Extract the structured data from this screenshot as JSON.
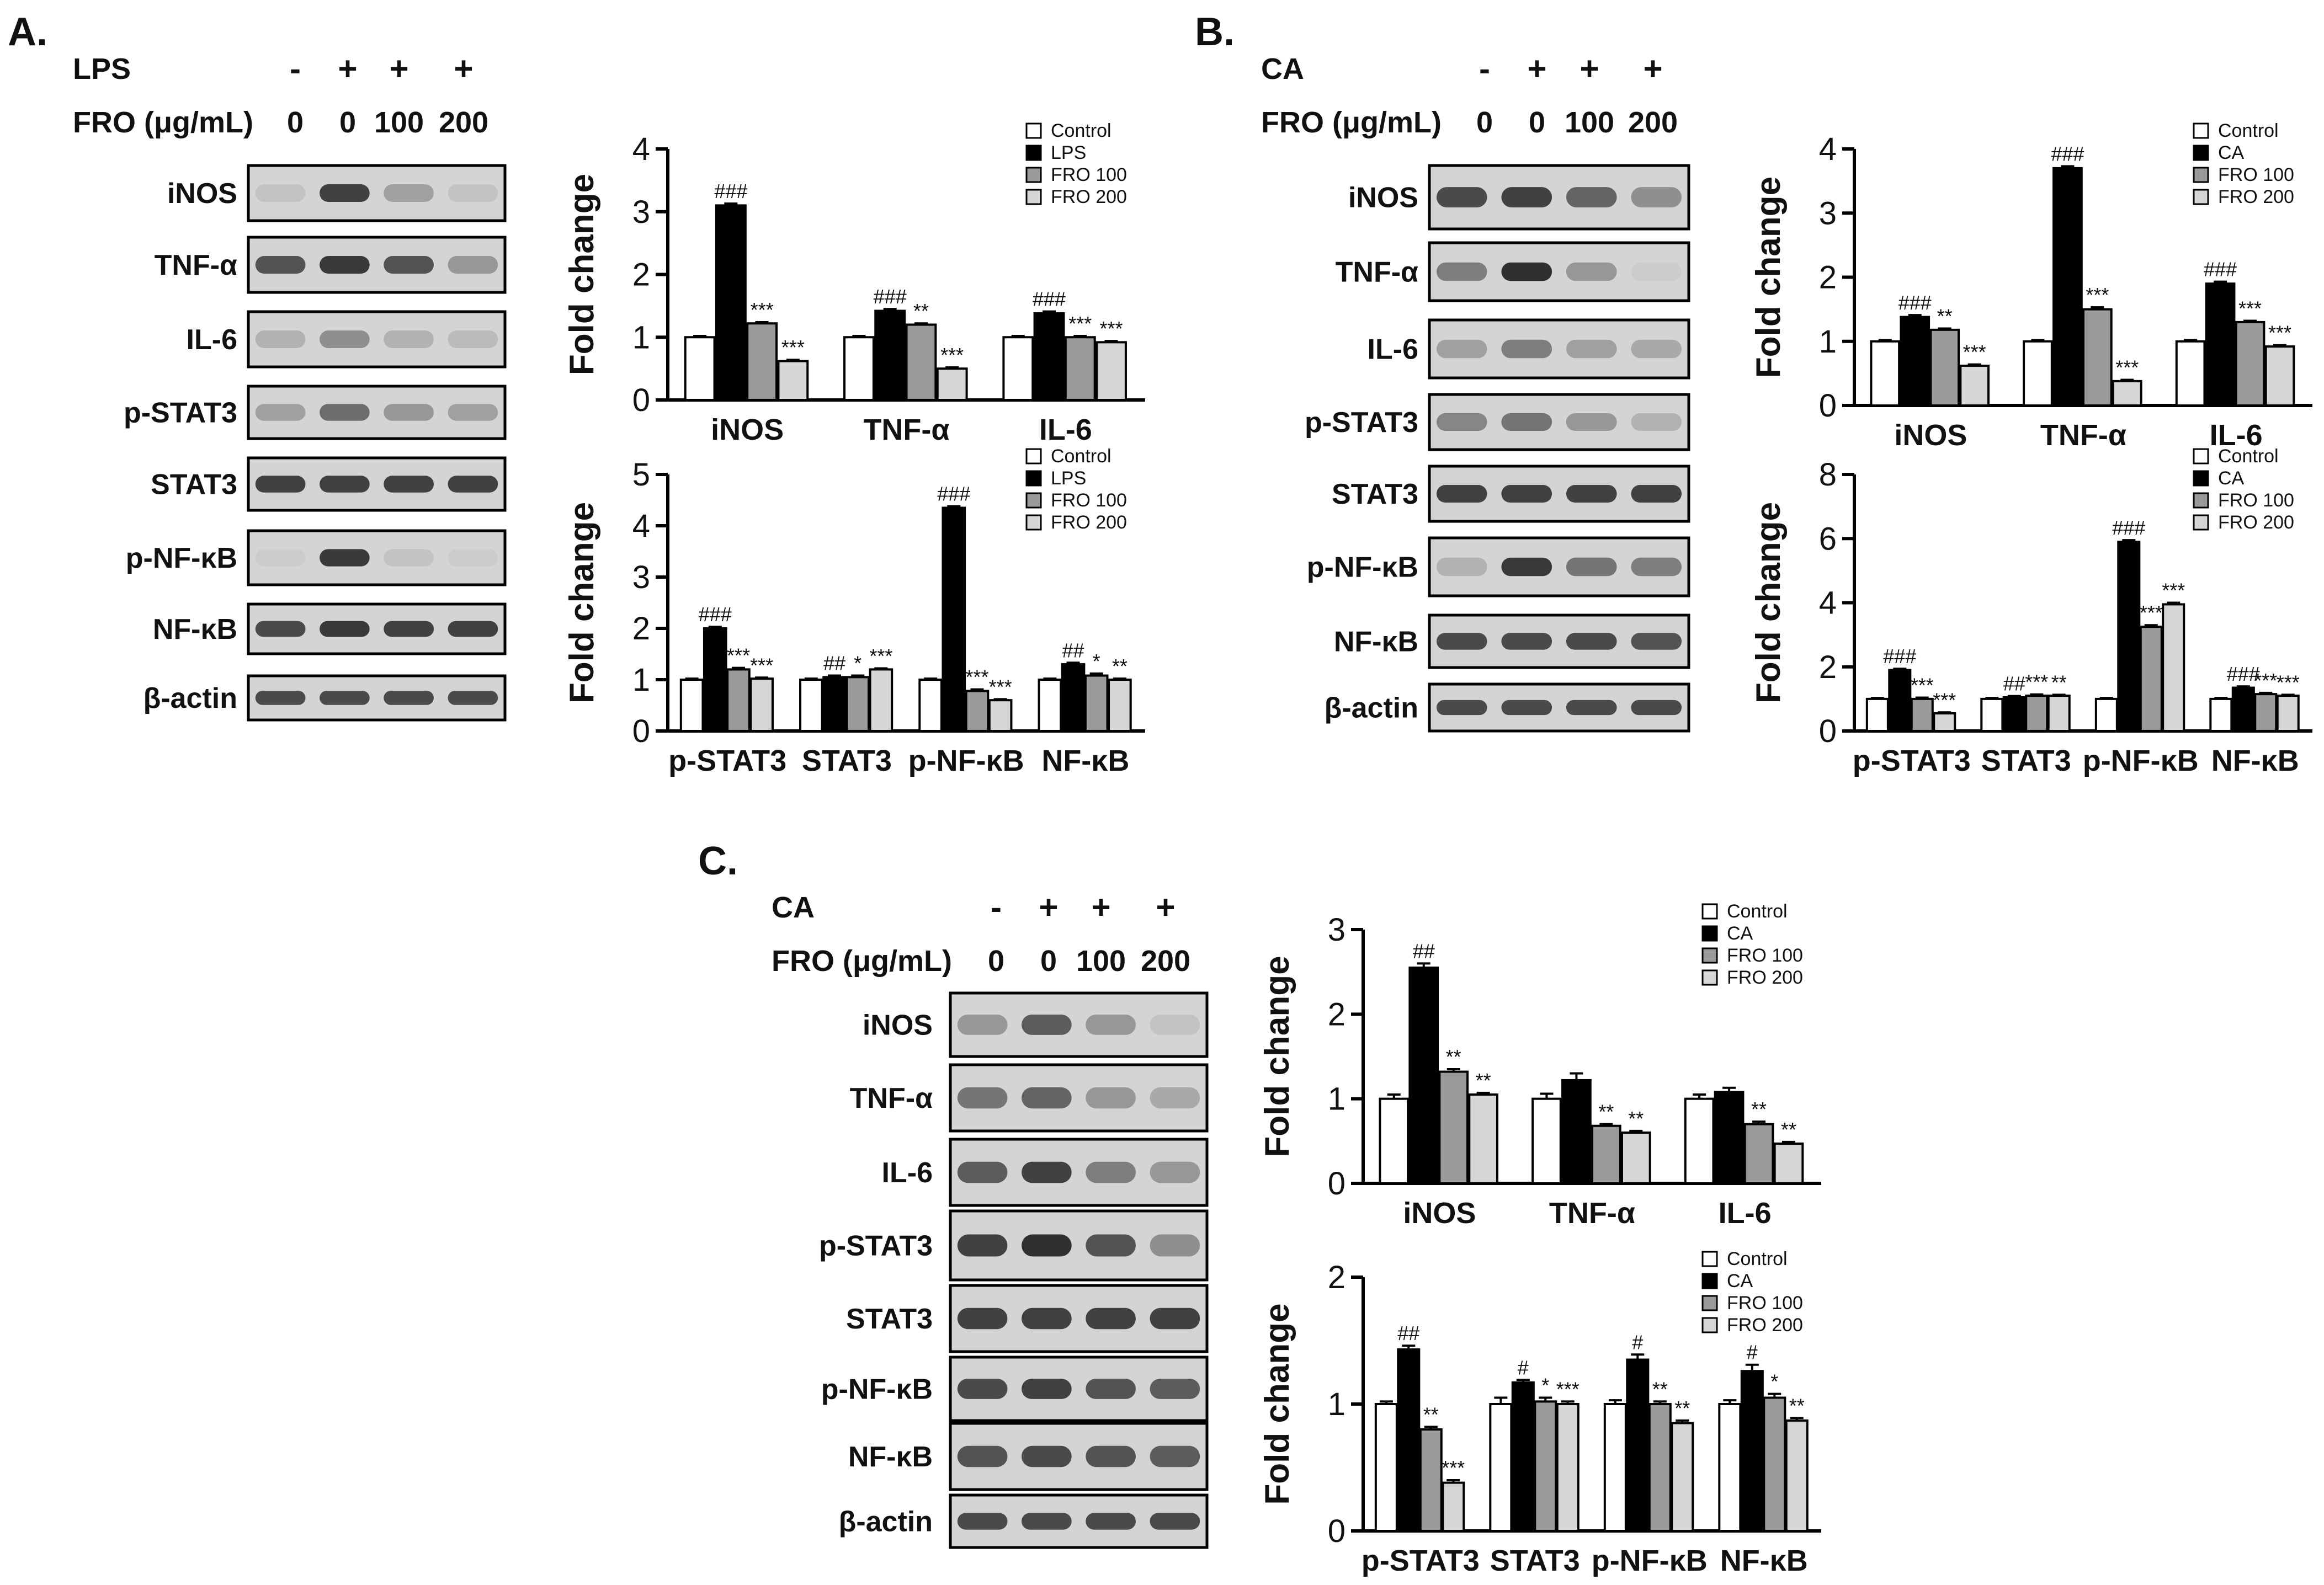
{
  "colors": {
    "control": "#ffffff",
    "treated": "#000000",
    "fro100": "#9a9a9a",
    "fro200": "#d6d6d6",
    "ink": "#111111",
    "blot_bg": "#d4d4d4",
    "blot_band": "#1e1e1e"
  },
  "panels": [
    {
      "label": "A.",
      "stimulus": "LPS",
      "stimulus_signs": [
        "-",
        "+",
        "+",
        "+"
      ],
      "dose_label": "FRO (μg/mL)",
      "doses": [
        "0",
        "0",
        "100",
        "200"
      ],
      "blots": [
        {
          "name": "iNOS",
          "intensity": [
            0.1,
            0.85,
            0.3,
            0.1
          ]
        },
        {
          "name": "TNF-α",
          "intensity": [
            0.75,
            0.9,
            0.75,
            0.35
          ]
        },
        {
          "name": "IL-6",
          "intensity": [
            0.2,
            0.4,
            0.2,
            0.15
          ]
        },
        {
          "name": "p-STAT3",
          "intensity": [
            0.3,
            0.6,
            0.35,
            0.3
          ]
        },
        {
          "name": "STAT3",
          "intensity": [
            0.85,
            0.85,
            0.85,
            0.85
          ]
        },
        {
          "name": "p-NF-κB",
          "intensity": [
            0.05,
            0.9,
            0.1,
            0.05
          ]
        },
        {
          "name": "NF-κB",
          "intensity": [
            0.8,
            0.9,
            0.85,
            0.85
          ]
        },
        {
          "name": "β-actin",
          "intensity": [
            0.8,
            0.8,
            0.8,
            0.8
          ]
        }
      ]
    },
    {
      "label": "B.",
      "stimulus": "CA",
      "stimulus_signs": [
        "-",
        "+",
        "+",
        "+"
      ],
      "dose_label": "FRO (μg/mL)",
      "doses": [
        "0",
        "0",
        "100",
        "200"
      ],
      "blots": [
        {
          "name": "iNOS",
          "intensity": [
            0.8,
            0.85,
            0.65,
            0.4
          ]
        },
        {
          "name": "TNF-α",
          "intensity": [
            0.5,
            0.95,
            0.35,
            0.05
          ]
        },
        {
          "name": "IL-6",
          "intensity": [
            0.3,
            0.5,
            0.3,
            0.25
          ]
        },
        {
          "name": "p-STAT3",
          "intensity": [
            0.45,
            0.55,
            0.35,
            0.2
          ]
        },
        {
          "name": "STAT3",
          "intensity": [
            0.85,
            0.85,
            0.85,
            0.85
          ]
        },
        {
          "name": "p-NF-κB",
          "intensity": [
            0.2,
            0.9,
            0.55,
            0.5
          ]
        },
        {
          "name": "NF-κB",
          "intensity": [
            0.8,
            0.8,
            0.8,
            0.75
          ]
        },
        {
          "name": "β-actin",
          "intensity": [
            0.8,
            0.8,
            0.8,
            0.8
          ]
        }
      ]
    },
    {
      "label": "C.",
      "stimulus": "CA",
      "stimulus_signs": [
        "-",
        "+",
        "+",
        "+"
      ],
      "dose_label": "FRO (μg/mL)",
      "doses": [
        "0",
        "0",
        "100",
        "200"
      ],
      "blots": [
        {
          "name": "iNOS",
          "intensity": [
            0.35,
            0.7,
            0.35,
            0.1
          ]
        },
        {
          "name": "TNF-α",
          "intensity": [
            0.55,
            0.65,
            0.35,
            0.25
          ]
        },
        {
          "name": "IL-6",
          "intensity": [
            0.7,
            0.85,
            0.5,
            0.35
          ]
        },
        {
          "name": "p-STAT3",
          "intensity": [
            0.85,
            0.95,
            0.75,
            0.4
          ]
        },
        {
          "name": "STAT3",
          "intensity": [
            0.85,
            0.85,
            0.85,
            0.85
          ]
        },
        {
          "name": "p-NF-κB",
          "intensity": [
            0.8,
            0.85,
            0.75,
            0.7
          ]
        },
        {
          "name": "NF-κB",
          "intensity": [
            0.75,
            0.8,
            0.75,
            0.7
          ]
        },
        {
          "name": "β-actin",
          "intensity": [
            0.8,
            0.8,
            0.8,
            0.8
          ]
        }
      ]
    }
  ],
  "chart_data": [
    {
      "panel": "A",
      "type": "bar",
      "ylabel": "Fold change",
      "ylim": [
        0,
        4
      ],
      "yticks": [
        0,
        1,
        2,
        3,
        4
      ],
      "legend_position": "top-right",
      "categories": [
        "iNOS",
        "TNF-α",
        "IL-6"
      ],
      "series": [
        {
          "name": "Control",
          "values": [
            1.0,
            1.0,
            1.0
          ],
          "errors": [
            0.02,
            0.02,
            0.02
          ],
          "annotations": [
            "",
            "",
            ""
          ]
        },
        {
          "name": "LPS",
          "values": [
            3.1,
            1.42,
            1.38
          ],
          "errors": [
            0.03,
            0.03,
            0.03
          ],
          "annotations": [
            "###",
            "###",
            "###"
          ]
        },
        {
          "name": "FRO 100",
          "values": [
            1.22,
            1.2,
            1.0
          ],
          "errors": [
            0.02,
            0.02,
            0.02
          ],
          "annotations": [
            "***",
            "**",
            "***"
          ]
        },
        {
          "name": "FRO 200",
          "values": [
            0.62,
            0.5,
            0.92
          ],
          "errors": [
            0.02,
            0.02,
            0.02
          ],
          "annotations": [
            "***",
            "***",
            "***"
          ]
        }
      ]
    },
    {
      "panel": "A",
      "type": "bar",
      "ylabel": "Fold change",
      "ylim": [
        0,
        5
      ],
      "yticks": [
        0,
        1,
        2,
        3,
        4,
        5
      ],
      "legend_position": "top-right",
      "categories": [
        "p-STAT3",
        "STAT3",
        "p-NF-κB",
        "NF-κB"
      ],
      "series": [
        {
          "name": "Control",
          "values": [
            1.0,
            1.0,
            1.0,
            1.0
          ],
          "errors": [
            0.02,
            0.02,
            0.02,
            0.02
          ],
          "annotations": [
            "",
            "",
            "",
            ""
          ]
        },
        {
          "name": "LPS",
          "values": [
            2.0,
            1.05,
            4.35,
            1.3
          ],
          "errors": [
            0.03,
            0.03,
            0.03,
            0.03
          ],
          "annotations": [
            "###",
            "##",
            "###",
            "##"
          ]
        },
        {
          "name": "FRO 100",
          "values": [
            1.2,
            1.05,
            0.78,
            1.08
          ],
          "errors": [
            0.03,
            0.03,
            0.03,
            0.04
          ],
          "annotations": [
            "***",
            "*",
            "***",
            "*"
          ]
        },
        {
          "name": "FRO 200",
          "values": [
            1.02,
            1.2,
            0.6,
            1.0
          ],
          "errors": [
            0.02,
            0.02,
            0.02,
            0.02
          ],
          "annotations": [
            "***",
            "***",
            "***",
            "**"
          ]
        }
      ]
    },
    {
      "panel": "B",
      "type": "bar",
      "ylabel": "Fold change",
      "ylim": [
        0,
        4
      ],
      "yticks": [
        0,
        1,
        2,
        3,
        4
      ],
      "legend_position": "top-right",
      "categories": [
        "iNOS",
        "TNF-α",
        "IL-6"
      ],
      "series": [
        {
          "name": "Control",
          "values": [
            1.0,
            1.0,
            1.0
          ],
          "errors": [
            0.02,
            0.02,
            0.02
          ],
          "annotations": [
            "",
            "",
            ""
          ]
        },
        {
          "name": "CA",
          "values": [
            1.38,
            3.7,
            1.9
          ],
          "errors": [
            0.03,
            0.03,
            0.03
          ],
          "annotations": [
            "###",
            "###",
            "###"
          ]
        },
        {
          "name": "FRO 100",
          "values": [
            1.18,
            1.5,
            1.3
          ],
          "errors": [
            0.02,
            0.03,
            0.02
          ],
          "annotations": [
            "**",
            "***",
            "***"
          ]
        },
        {
          "name": "FRO 200",
          "values": [
            0.62,
            0.38,
            0.92
          ],
          "errors": [
            0.02,
            0.02,
            0.02
          ],
          "annotations": [
            "***",
            "***",
            "***"
          ]
        }
      ]
    },
    {
      "panel": "B",
      "type": "bar",
      "ylabel": "Fold change",
      "ylim": [
        0,
        8
      ],
      "yticks": [
        0,
        2,
        4,
        6,
        8
      ],
      "legend_position": "top-right",
      "categories": [
        "p-STAT3",
        "STAT3",
        "p-NF-κB",
        "NF-κB"
      ],
      "series": [
        {
          "name": "Control",
          "values": [
            1.0,
            1.0,
            1.0,
            1.0
          ],
          "errors": [
            0.03,
            0.03,
            0.03,
            0.03
          ],
          "annotations": [
            "",
            "",
            "",
            ""
          ]
        },
        {
          "name": "CA",
          "values": [
            1.9,
            1.05,
            5.9,
            1.35
          ],
          "errors": [
            0.04,
            0.04,
            0.05,
            0.04
          ],
          "annotations": [
            "###",
            "##",
            "###",
            "###"
          ]
        },
        {
          "name": "FRO 100",
          "values": [
            1.0,
            1.1,
            3.25,
            1.15
          ],
          "errors": [
            0.04,
            0.04,
            0.05,
            0.04
          ],
          "annotations": [
            "***",
            "***",
            "***",
            "***"
          ]
        },
        {
          "name": "FRO 200",
          "values": [
            0.55,
            1.1,
            3.95,
            1.1
          ],
          "errors": [
            0.03,
            0.03,
            0.05,
            0.03
          ],
          "annotations": [
            "***",
            "**",
            "***",
            "***"
          ]
        }
      ]
    },
    {
      "panel": "C",
      "type": "bar",
      "ylabel": "Fold change",
      "ylim": [
        0,
        3
      ],
      "yticks": [
        0,
        1,
        2,
        3
      ],
      "legend_position": "top-right",
      "categories": [
        "iNOS",
        "TNF-α",
        "IL-6"
      ],
      "series": [
        {
          "name": "Control",
          "values": [
            1.0,
            1.0,
            1.0
          ],
          "errors": [
            0.05,
            0.06,
            0.05
          ],
          "annotations": [
            "",
            "",
            ""
          ]
        },
        {
          "name": "CA",
          "values": [
            2.55,
            1.22,
            1.08
          ],
          "errors": [
            0.05,
            0.08,
            0.05
          ],
          "annotations": [
            "##",
            "",
            ""
          ]
        },
        {
          "name": "FRO 100",
          "values": [
            1.32,
            0.68,
            0.7
          ],
          "errors": [
            0.03,
            0.02,
            0.03
          ],
          "annotations": [
            "**",
            "**",
            "**"
          ]
        },
        {
          "name": "FRO 200",
          "values": [
            1.05,
            0.6,
            0.47
          ],
          "errors": [
            0.02,
            0.02,
            0.02
          ],
          "annotations": [
            "**",
            "**",
            "**"
          ]
        }
      ]
    },
    {
      "panel": "C",
      "type": "bar",
      "ylabel": "Fold change",
      "ylim": [
        0,
        2
      ],
      "yticks": [
        0,
        1,
        2
      ],
      "legend_position": "top-right",
      "categories": [
        "p-STAT3",
        "STAT3",
        "p-NF-κB",
        "NF-κB"
      ],
      "series": [
        {
          "name": "Control",
          "values": [
            1.0,
            1.0,
            1.0,
            1.0
          ],
          "errors": [
            0.02,
            0.05,
            0.03,
            0.03
          ],
          "annotations": [
            "",
            "",
            "",
            ""
          ]
        },
        {
          "name": "CA",
          "values": [
            1.43,
            1.17,
            1.35,
            1.26
          ],
          "errors": [
            0.03,
            0.02,
            0.04,
            0.05
          ],
          "annotations": [
            "##",
            "#",
            "#",
            "#"
          ]
        },
        {
          "name": "FRO 100",
          "values": [
            0.8,
            1.02,
            1.0,
            1.05
          ],
          "errors": [
            0.02,
            0.03,
            0.02,
            0.03
          ],
          "annotations": [
            "**",
            "*",
            "**",
            "*"
          ]
        },
        {
          "name": "FRO 200",
          "values": [
            0.38,
            1.0,
            0.85,
            0.87
          ],
          "errors": [
            0.02,
            0.02,
            0.02,
            0.02
          ],
          "annotations": [
            "***",
            "***",
            "**",
            "**"
          ]
        }
      ]
    }
  ]
}
